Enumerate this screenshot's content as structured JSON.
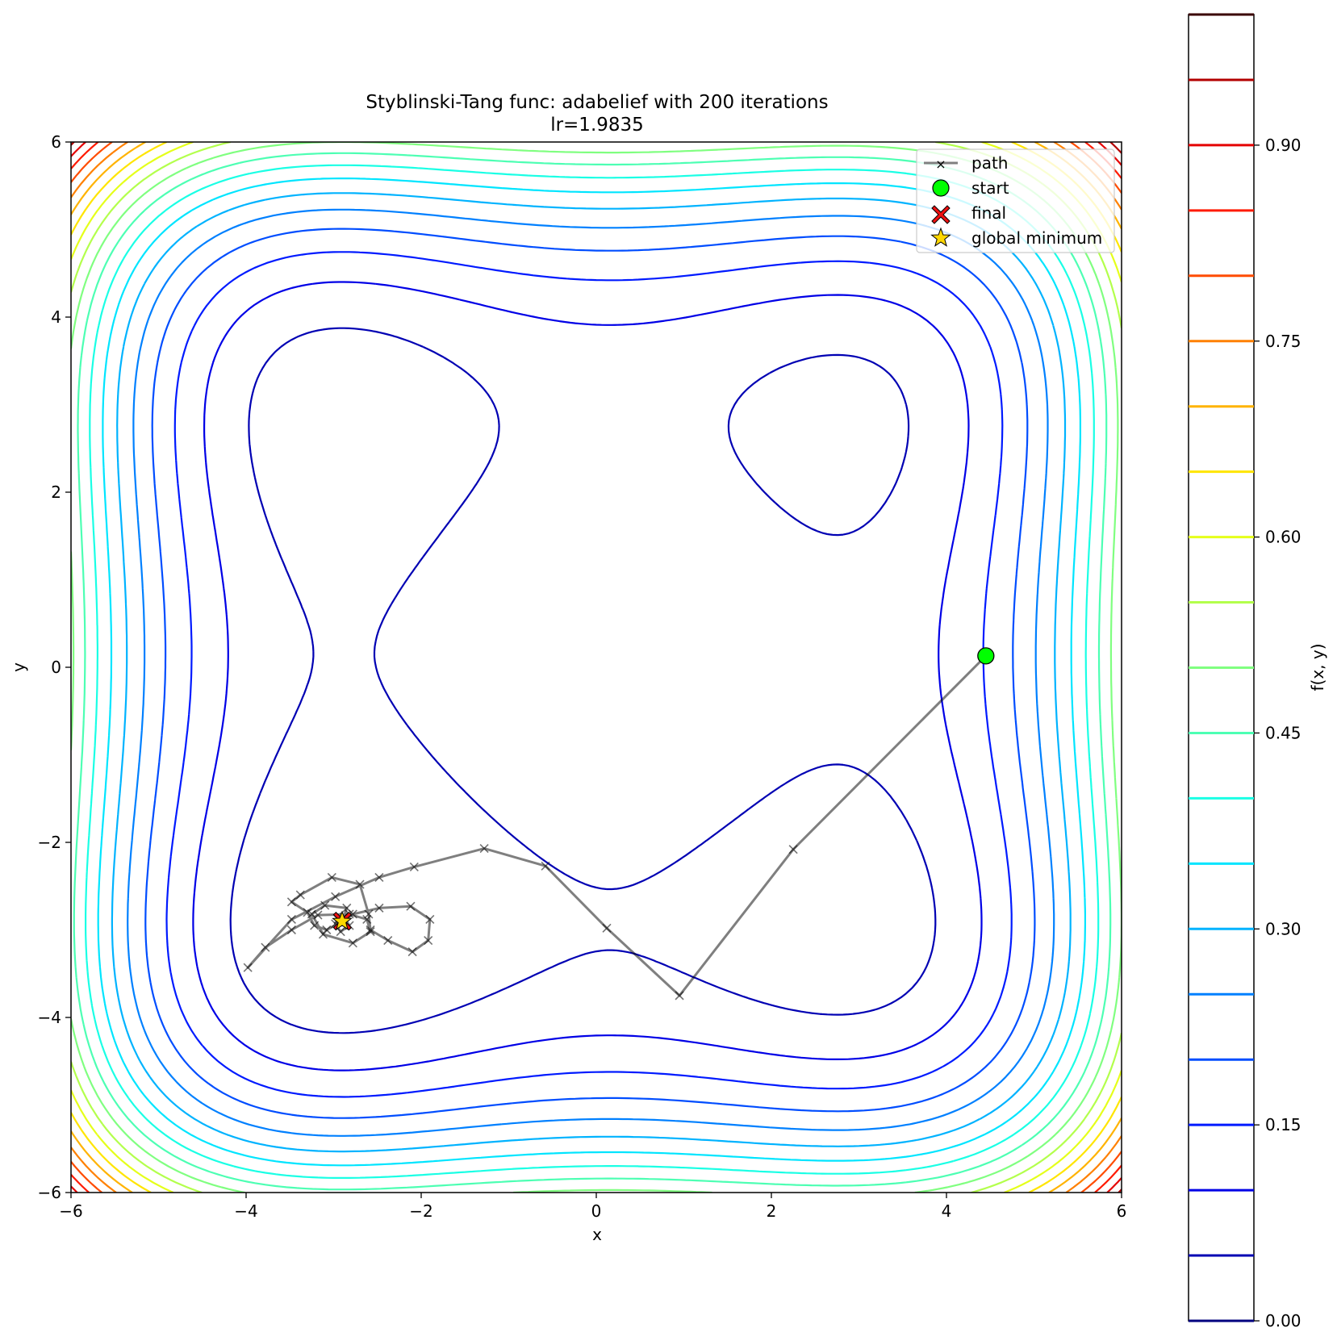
{
  "chart_data": {
    "type": "contour",
    "title": "Styblinski-Tang func: adabelief with 200 iterations",
    "subtitle": "lr=1.9835",
    "xlabel": "x",
    "ylabel": "y",
    "xlim": [
      -6,
      6
    ],
    "ylim": [
      -6,
      6
    ],
    "xticks": [
      "−6",
      "−4",
      "−2",
      "0",
      "2",
      "4",
      "6"
    ],
    "yticks": [
      "−6",
      "−4",
      "−2",
      "0",
      "2",
      "4",
      "6"
    ],
    "xtick_values": [
      -6,
      -4,
      -2,
      0,
      2,
      4,
      6
    ],
    "ytick_values": [
      -6,
      -4,
      -2,
      0,
      2,
      4,
      6
    ],
    "colormap": "jet",
    "contour_levels": [
      0.0,
      0.05,
      0.1,
      0.15,
      0.2,
      0.25,
      0.3,
      0.35,
      0.4,
      0.45,
      0.5,
      0.55,
      0.6,
      0.65,
      0.7,
      0.75,
      0.8,
      0.85,
      0.9,
      0.95,
      1.0
    ],
    "colorbar": {
      "label": "f(x, y)",
      "range": [
        0.0,
        1.0
      ],
      "tick_values": [
        0.0,
        0.15,
        0.3,
        0.45,
        0.6,
        0.75,
        0.9
      ],
      "tick_labels": [
        "0.00",
        "0.15",
        "0.30",
        "0.45",
        "0.60",
        "0.75",
        "0.90"
      ]
    },
    "legend": {
      "placement": "upper right",
      "entries": [
        "path",
        "start",
        "final",
        "global minimum"
      ]
    },
    "start": [
      4.45,
      0.13
    ],
    "final": [
      -2.9,
      -2.9
    ],
    "global_minimum": [
      -2.9035,
      -2.9035
    ],
    "path": [
      [
        4.45,
        0.13
      ],
      [
        2.25,
        -2.08
      ],
      [
        0.95,
        -3.75
      ],
      [
        0.12,
        -2.98
      ],
      [
        -0.58,
        -2.27
      ],
      [
        -1.28,
        -2.07
      ],
      [
        -2.08,
        -2.28
      ],
      [
        -2.48,
        -2.4
      ],
      [
        -2.98,
        -2.62
      ],
      [
        -3.48,
        -2.88
      ],
      [
        -3.98,
        -3.43
      ],
      [
        -3.78,
        -3.2
      ],
      [
        -3.48,
        -3.0
      ],
      [
        -3.18,
        -2.83
      ],
      [
        -2.78,
        -2.82
      ],
      [
        -2.48,
        -2.75
      ],
      [
        -2.12,
        -2.73
      ],
      [
        -1.9,
        -2.88
      ],
      [
        -1.92,
        -3.12
      ],
      [
        -2.1,
        -3.25
      ],
      [
        -2.38,
        -3.12
      ],
      [
        -2.58,
        -3.0
      ],
      [
        -2.6,
        -2.82
      ],
      [
        -2.7,
        -2.48
      ],
      [
        -3.02,
        -2.4
      ],
      [
        -3.38,
        -2.6
      ],
      [
        -3.48,
        -2.68
      ],
      [
        -3.3,
        -2.8
      ],
      [
        -3.22,
        -2.95
      ],
      [
        -3.08,
        -3.0
      ],
      [
        -2.9,
        -2.9
      ],
      [
        -2.85,
        -2.75
      ],
      [
        -3.1,
        -2.72
      ],
      [
        -3.25,
        -2.82
      ],
      [
        -3.12,
        -3.05
      ],
      [
        -2.78,
        -3.15
      ],
      [
        -2.58,
        -3.02
      ],
      [
        -2.62,
        -2.88
      ],
      [
        -2.82,
        -2.82
      ],
      [
        -2.98,
        -2.93
      ],
      [
        -2.92,
        -3.02
      ],
      [
        -2.82,
        -2.95
      ],
      [
        -2.88,
        -2.85
      ],
      [
        -2.95,
        -2.88
      ],
      [
        -2.9,
        -2.9
      ]
    ]
  }
}
